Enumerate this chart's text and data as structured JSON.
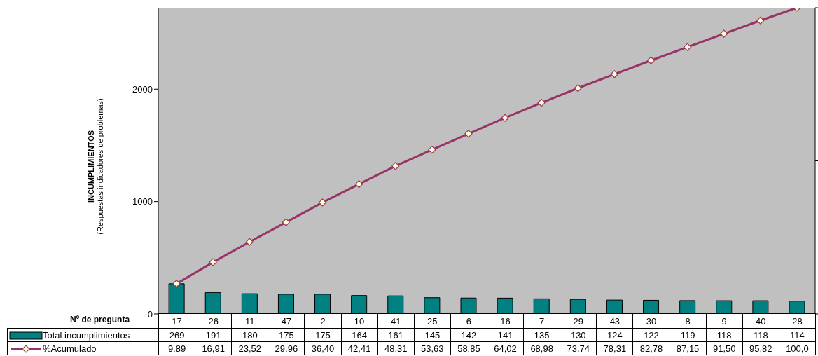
{
  "chart_data": {
    "type": "bar",
    "xlabel": "Nº de pregunta",
    "ylabel": "INCUMPLIMIENTOS\n(Respuestas indicadores de problemas)",
    "categories": [
      "17",
      "26",
      "11",
      "47",
      "2",
      "10",
      "41",
      "25",
      "6",
      "16",
      "7",
      "29",
      "43",
      "30",
      "8",
      "9",
      "40",
      "28"
    ],
    "series": [
      {
        "name": "Total incumplimientos",
        "color": "#008080",
        "values": [
          269,
          191,
          180,
          175,
          175,
          164,
          161,
          145,
          142,
          141,
          135,
          130,
          124,
          122,
          119,
          118,
          118,
          114
        ],
        "value_labels": [
          "269",
          "191",
          "180",
          "175",
          "175",
          "164",
          "161",
          "145",
          "142",
          "141",
          "135",
          "130",
          "124",
          "122",
          "119",
          "118",
          "118",
          "114"
        ]
      },
      {
        "name": "%Acumulado",
        "type": "line",
        "axis": "y2",
        "color": "#993366",
        "marker": "diamond",
        "values": [
          9.89,
          16.91,
          23.52,
          29.96,
          36.4,
          42.41,
          48.31,
          53.63,
          58.85,
          64.02,
          68.98,
          73.74,
          78.31,
          82.78,
          87.15,
          91.5,
          95.82,
          100.0
        ],
        "value_labels": [
          "9,89",
          "16,91",
          "23,52",
          "29,96",
          "36,40",
          "42,41",
          "48,31",
          "53,63",
          "58,85",
          "64,02",
          "68,98",
          "73,74",
          "78,31",
          "82,78",
          "87,15",
          "91,50",
          "95,82",
          "100,0"
        ]
      }
    ],
    "ylim": [
      0,
      2725
    ],
    "yticks": [
      0,
      1000,
      2000
    ],
    "y2lim": [
      0,
      100
    ],
    "y2ticks": [
      {
        "value": 0,
        "label": null
      },
      {
        "value": 50,
        "label": null
      },
      {
        "value": 100,
        "label": null
      }
    ],
    "grid": false,
    "legend": "bottom"
  }
}
